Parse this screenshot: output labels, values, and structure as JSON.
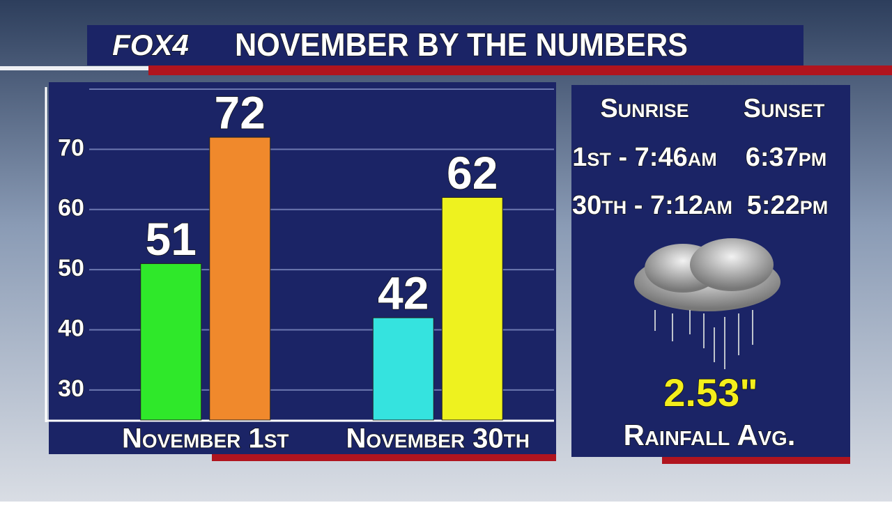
{
  "header": {
    "logo": "FOX4",
    "title": "NOVEMBER BY THE NUMBERS"
  },
  "chart_data": {
    "type": "bar",
    "categories": [
      "November 1st",
      "November 30th"
    ],
    "series": [
      {
        "colors": [
          "#2fe82a",
          "#35e3df"
        ],
        "values": [
          51,
          42
        ]
      },
      {
        "colors": [
          "#f0892c",
          "#eef21f"
        ],
        "values": [
          72,
          62
        ]
      }
    ],
    "ylim": [
      25,
      80
    ],
    "yticks": [
      30,
      40,
      50,
      60,
      70
    ],
    "grid": true
  },
  "panel": {
    "columns": [
      "Sunrise",
      "Sunset"
    ],
    "rows": [
      [
        "1st - 7:46am",
        "6:37pm"
      ],
      [
        "30th - 7:12am",
        "5:22pm"
      ]
    ],
    "rainfall": {
      "value": "2.53\"",
      "label": "Rainfall Avg."
    }
  }
}
